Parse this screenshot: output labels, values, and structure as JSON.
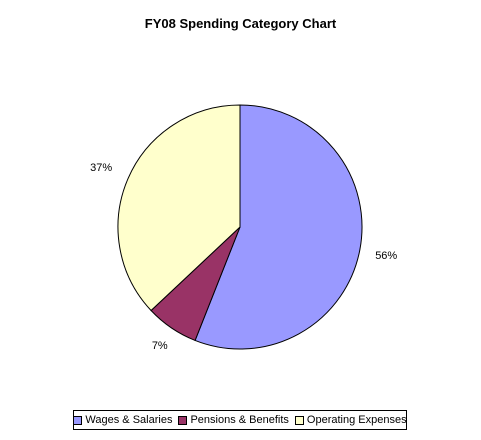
{
  "chart_data": {
    "type": "pie",
    "title": "FY08 Spending Category Chart",
    "categories": [
      "Wages & Salaries",
      "Pensions & Benefits",
      "Operating Expenses"
    ],
    "values": [
      56,
      7,
      37
    ],
    "labels": [
      "56%",
      "7%",
      "37%"
    ],
    "colors": [
      "#9999ff",
      "#993366",
      "#ffffcc"
    ],
    "legend": "bottom"
  }
}
